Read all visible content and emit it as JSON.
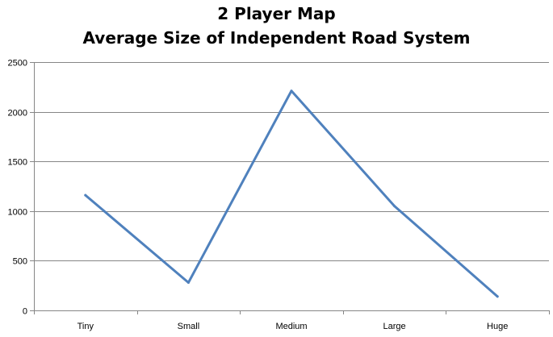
{
  "chart_data": {
    "type": "line",
    "title": "2 Player Map",
    "subtitle": "Average Size of Independent Road System",
    "xlabel": "",
    "ylabel": "",
    "categories": [
      "Tiny",
      "Small",
      "Medium",
      "Large",
      "Huge"
    ],
    "series": [
      {
        "values": [
          1160,
          280,
          2210,
          1050,
          140
        ],
        "color": "#4F81BD"
      }
    ],
    "ylim": [
      0,
      2500
    ],
    "yticks": [
      0,
      500,
      1000,
      1500,
      2000,
      2500
    ],
    "grid": "horizontal",
    "legend": "none"
  }
}
